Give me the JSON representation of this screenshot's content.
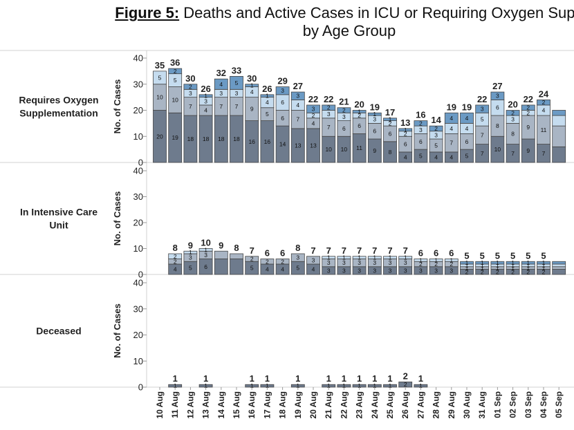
{
  "chart_data": {
    "type": "bar",
    "stacked": true,
    "title_prefix": "Figure 5:",
    "title": "Deaths and Active Cases in ICU or Requiring Oxygen Supp",
    "title_line2": "by Age Group",
    "ylabel": "No. of Cases",
    "ylim": [
      0,
      40
    ],
    "yticks": [
      0,
      10,
      20,
      30,
      40
    ],
    "grid": false,
    "colors": [
      "#6e7b8d",
      "#a9b5c4",
      "#c5dcef",
      "#6b9ac4",
      "#4477aa"
    ],
    "categories": [
      "10 Aug",
      "11 Aug",
      "12 Aug",
      "13 Aug",
      "14 Aug",
      "15 Aug",
      "16 Aug",
      "17 Aug",
      "18 Aug",
      "19 Aug",
      "20 Aug",
      "21 Aug",
      "22 Aug",
      "23 Aug",
      "24 Aug",
      "25 Aug",
      "26 Aug",
      "27 Aug",
      "28 Aug",
      "29 Aug",
      "30 Aug",
      "31 Aug",
      "01 Sep",
      "02 Sep",
      "03 Sep",
      "04 Sep",
      "05 Sep"
    ],
    "panels": [
      {
        "name": "Requires Oxygen Supplementation",
        "name_lines": [
          "Requires Oxygen",
          "Supplementation"
        ],
        "totals": [
          35,
          36,
          30,
          26,
          32,
          33,
          30,
          26,
          29,
          27,
          22,
          22,
          21,
          20,
          19,
          17,
          13,
          16,
          14,
          19,
          19,
          22,
          27,
          20,
          22,
          24,
          null
        ],
        "stacks": [
          [
            20,
            10,
            5
          ],
          [
            19,
            10,
            5,
            2
          ],
          [
            18,
            7,
            3,
            2
          ],
          [
            18,
            4,
            3,
            1
          ],
          [
            18,
            7,
            3,
            4
          ],
          [
            18,
            7,
            3,
            5
          ],
          [
            16,
            9,
            4,
            1
          ],
          [
            16,
            5,
            4,
            1
          ],
          [
            14,
            6,
            6,
            3
          ],
          [
            13,
            7,
            4,
            3
          ],
          [
            13,
            4,
            2,
            3
          ],
          [
            10,
            7,
            3,
            2
          ],
          [
            10,
            6,
            3,
            2
          ],
          [
            11,
            6,
            2,
            1
          ],
          [
            9,
            6,
            3,
            1
          ],
          [
            8,
            6,
            2,
            1
          ],
          [
            4,
            6,
            2,
            1
          ],
          [
            5,
            6,
            3,
            2
          ],
          [
            4,
            5,
            3,
            2
          ],
          [
            4,
            7,
            4,
            4
          ],
          [
            5,
            6,
            4,
            4
          ],
          [
            7,
            7,
            5,
            3
          ],
          [
            10,
            8,
            6,
            3
          ],
          [
            7,
            8,
            3,
            2
          ],
          [
            9,
            9,
            2,
            2
          ],
          [
            7,
            11,
            4,
            2
          ],
          [
            6,
            8,
            4,
            2
          ]
        ],
        "hidden_labels": [
          [],
          [],
          [],
          [],
          [],
          [],
          [],
          [],
          [],
          [],
          [],
          [],
          [],
          [],
          [],
          [],
          [],
          [],
          [],
          [],
          [],
          [],
          [],
          [],
          [],
          [],
          [
            0,
            1,
            2,
            3
          ]
        ]
      },
      {
        "name": "In Intensive Care Unit",
        "name_lines": [
          "In Intensive Care",
          "Unit"
        ],
        "totals": [
          null,
          8,
          9,
          10,
          9,
          8,
          7,
          6,
          6,
          8,
          7,
          7,
          7,
          7,
          7,
          7,
          7,
          6,
          6,
          6,
          5,
          5,
          5,
          5,
          5,
          5,
          null
        ],
        "stacks": [
          [],
          [
            4,
            2,
            2
          ],
          [
            5,
            3,
            1
          ],
          [
            6,
            3,
            1
          ],
          [
            6,
            3
          ],
          [
            6,
            2
          ],
          [
            5,
            2
          ],
          [
            4,
            2
          ],
          [
            4,
            2
          ],
          [
            5,
            3
          ],
          [
            4,
            3
          ],
          [
            3,
            3,
            1
          ],
          [
            3,
            3,
            1
          ],
          [
            3,
            3,
            1
          ],
          [
            3,
            3,
            1
          ],
          [
            3,
            3,
            1
          ],
          [
            3,
            3,
            1
          ],
          [
            3,
            2,
            1
          ],
          [
            3,
            2,
            1
          ],
          [
            3,
            2,
            1
          ],
          [
            2,
            1,
            1,
            1
          ],
          [
            2,
            1,
            1,
            1
          ],
          [
            2,
            1,
            1,
            1
          ],
          [
            2,
            1,
            1,
            1
          ],
          [
            2,
            1,
            1,
            1
          ],
          [
            2,
            1,
            1,
            1
          ],
          [
            2,
            1,
            1,
            1
          ]
        ],
        "hidden_labels": [
          [],
          [],
          [],
          [],
          [
            0,
            1
          ],
          [
            0,
            1
          ],
          [],
          [],
          [],
          [],
          [],
          [],
          [],
          [],
          [],
          [],
          [],
          [],
          [],
          [],
          [],
          [],
          [],
          [],
          [],
          [],
          [
            0,
            1,
            2,
            3
          ]
        ]
      },
      {
        "name": "Deceased",
        "name_lines": [
          "Deceased"
        ],
        "totals": [
          null,
          1,
          null,
          1,
          null,
          null,
          1,
          1,
          null,
          1,
          null,
          1,
          1,
          1,
          1,
          1,
          2,
          1,
          null,
          null,
          null,
          null,
          null,
          null,
          null,
          null,
          null
        ],
        "stacks": [
          [],
          [
            1
          ],
          [],
          [
            1
          ],
          [],
          [],
          [
            1
          ],
          [
            1
          ],
          [],
          [
            1
          ],
          [],
          [
            1
          ],
          [
            1
          ],
          [
            1
          ],
          [
            1
          ],
          [
            1
          ],
          [
            2
          ],
          [
            1
          ],
          [],
          [],
          [],
          [],
          [],
          [],
          [],
          [],
          []
        ],
        "hidden_labels": []
      }
    ]
  }
}
